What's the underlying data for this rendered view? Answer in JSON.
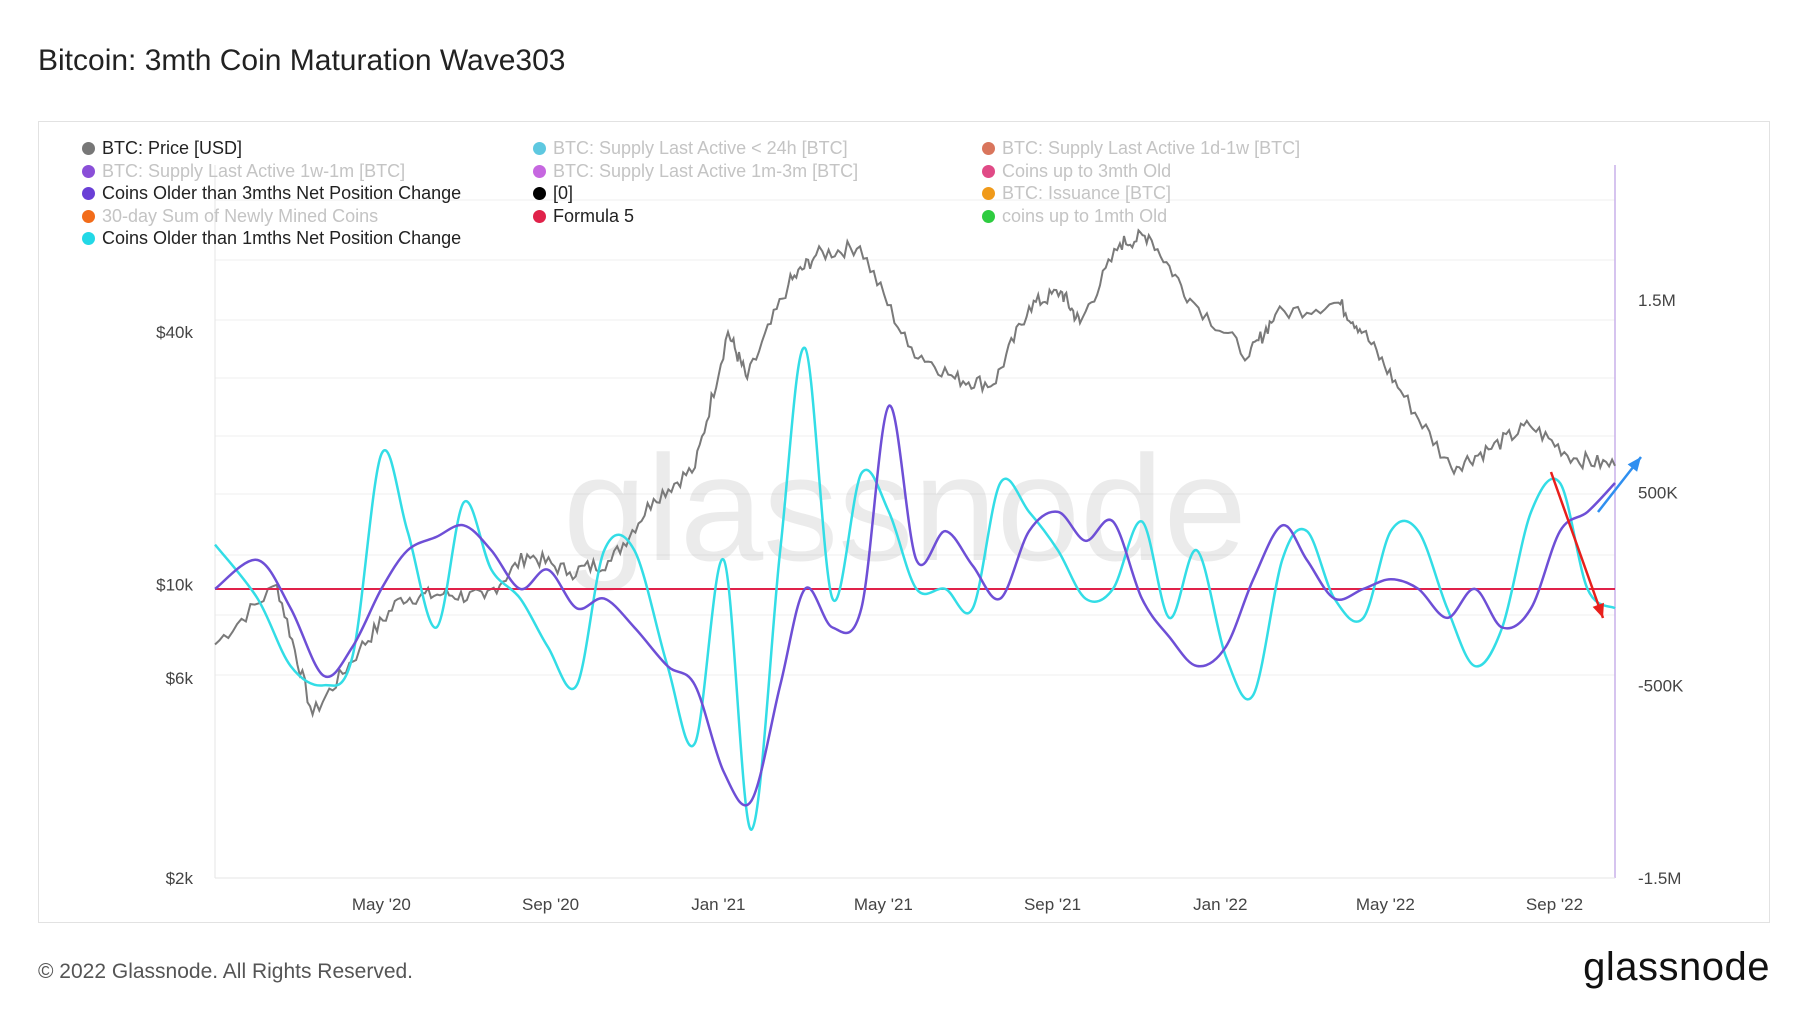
{
  "title": "Bitcoin: 3mth Coin Maturation Wave303",
  "footer": {
    "copyright": "© 2022 Glassnode. All Rights Reserved.",
    "logo": "glassnode"
  },
  "watermark": "glassnode",
  "colors": {
    "price": "#7a7a7a",
    "coins_3m": "#6e4fd6",
    "coins_1m": "#33dde6",
    "formula5": "#e0224a",
    "arrow_red": "#e8201c",
    "arrow_blue": "#2f8ff0"
  },
  "legend": [
    {
      "label": "BTC: Price [USD]",
      "color": "#777777",
      "active": true
    },
    {
      "label": "BTC: Supply Last Active < 24h [BTC]",
      "color": "#5ec8e0",
      "active": false
    },
    {
      "label": "BTC: Supply Last Active 1d-1w [BTC]",
      "color": "#d9755c",
      "active": false
    },
    {
      "label": "BTC: Supply Last Active 1w-1m [BTC]",
      "color": "#8a4fd8",
      "active": false
    },
    {
      "label": "BTC: Supply Last Active 1m-3m [BTC]",
      "color": "#c667e0",
      "active": false
    },
    {
      "label": "Coins up to 3mth Old",
      "color": "#e04a86",
      "active": false
    },
    {
      "label": "Coins Older than 3mths Net Position Change",
      "color": "#6a3fd6",
      "active": true
    },
    {
      "label": "[0]",
      "color": "#000000",
      "active": true
    },
    {
      "label": "BTC: Issuance [BTC]",
      "color": "#f09a1a",
      "active": false
    },
    {
      "label": "30-day Sum of Newly Mined Coins",
      "color": "#f26c1a",
      "active": false
    },
    {
      "label": "Formula 5",
      "color": "#e0224a",
      "active": true
    },
    {
      "label": "coins up to 1mth Old",
      "color": "#2ecc40",
      "active": false
    },
    {
      "label": "Coins Older than 1mths Net Position Change",
      "color": "#22d8e6",
      "active": true
    }
  ],
  "chart_data": {
    "type": "line",
    "title": "Bitcoin: 3mth Coin Maturation Wave303",
    "x_range": [
      "2020-01-01",
      "2022-10-15"
    ],
    "x_tick_labels": [
      "May '20",
      "Sep '20",
      "Jan '21",
      "May '21",
      "Sep '21",
      "Jan '22",
      "May '22",
      "Sep '22"
    ],
    "y_left": {
      "scale": "log",
      "range": [
        2000,
        100000
      ],
      "tick_labels": [
        "$2k",
        "$6k",
        "$10k",
        "$40k"
      ],
      "tick_values": [
        2000,
        6000,
        10000,
        40000
      ]
    },
    "y_right": {
      "scale": "linear",
      "range": [
        -1500000,
        2200000
      ],
      "tick_labels": [
        "-1.5M",
        "-500K",
        "500K",
        "1.5M"
      ],
      "tick_values": [
        -1500000,
        -500000,
        500000,
        1500000
      ]
    },
    "series": [
      {
        "name": "BTC: Price [USD]",
        "axis": "left",
        "x": [
          "2020-01-01",
          "2020-02-15",
          "2020-03-12",
          "2020-04-15",
          "2020-05-15",
          "2020-06-15",
          "2020-07-15",
          "2020-08-15",
          "2020-09-15",
          "2020-10-15",
          "2020-11-15",
          "2020-12-15",
          "2021-01-08",
          "2021-01-22",
          "2021-02-21",
          "2021-03-13",
          "2021-04-14",
          "2021-05-19",
          "2021-06-22",
          "2021-07-20",
          "2021-08-15",
          "2021-09-07",
          "2021-09-21",
          "2021-10-20",
          "2021-11-10",
          "2021-12-10",
          "2022-01-22",
          "2022-02-10",
          "2022-03-28",
          "2022-04-15",
          "2022-05-12",
          "2022-06-18",
          "2022-07-15",
          "2022-08-14",
          "2022-09-15",
          "2022-10-15"
        ],
        "values": [
          7200,
          10000,
          4900,
          7000,
          9300,
          9500,
          9300,
          11800,
          10700,
          11400,
          16000,
          19000,
          40000,
          31000,
          52000,
          61000,
          64000,
          37000,
          31000,
          30000,
          46000,
          50000,
          42000,
          65000,
          68000,
          48000,
          35000,
          44000,
          47000,
          40000,
          29000,
          19000,
          21000,
          24000,
          20000,
          19200
        ]
      },
      {
        "name": "Coins Older than 3mths Net Position Change",
        "axis": "right",
        "x": [
          "2020-01-01",
          "2020-02-01",
          "2020-02-25",
          "2020-03-20",
          "2020-04-10",
          "2020-05-01",
          "2020-05-20",
          "2020-06-10",
          "2020-06-30",
          "2020-07-20",
          "2020-08-10",
          "2020-08-30",
          "2020-09-20",
          "2020-10-10",
          "2020-11-01",
          "2020-11-25",
          "2020-12-15",
          "2021-01-05",
          "2021-01-25",
          "2021-02-15",
          "2021-03-05",
          "2021-03-25",
          "2021-04-15",
          "2021-05-05",
          "2021-05-25",
          "2021-06-15",
          "2021-07-05",
          "2021-07-25",
          "2021-08-15",
          "2021-09-05",
          "2021-09-25",
          "2021-10-15",
          "2021-11-05",
          "2021-11-25",
          "2021-12-15",
          "2022-01-05",
          "2022-01-25",
          "2022-02-15",
          "2022-03-05",
          "2022-03-25",
          "2022-04-15",
          "2022-05-05",
          "2022-05-25",
          "2022-06-15",
          "2022-07-05",
          "2022-07-25",
          "2022-08-15",
          "2022-09-05",
          "2022-09-25",
          "2022-10-15"
        ],
        "values": [
          0,
          150000,
          -100000,
          -450000,
          -300000,
          0,
          200000,
          270000,
          330000,
          200000,
          0,
          100000,
          -100000,
          -50000,
          -200000,
          -400000,
          -500000,
          -950000,
          -1100000,
          -500000,
          0,
          -200000,
          -100000,
          950000,
          150000,
          300000,
          120000,
          -50000,
          300000,
          400000,
          250000,
          350000,
          -50000,
          -250000,
          -400000,
          -300000,
          50000,
          330000,
          150000,
          -50000,
          0,
          50000,
          0,
          -150000,
          0,
          -200000,
          -100000,
          300000,
          400000,
          550000
        ]
      },
      {
        "name": "Coins Older than 1mths Net Position Change",
        "axis": "right",
        "x": [
          "2020-01-01",
          "2020-02-01",
          "2020-02-25",
          "2020-03-20",
          "2020-04-10",
          "2020-05-01",
          "2020-05-20",
          "2020-06-10",
          "2020-06-30",
          "2020-07-20",
          "2020-08-10",
          "2020-08-30",
          "2020-09-20",
          "2020-10-10",
          "2020-11-01",
          "2020-11-25",
          "2020-12-15",
          "2021-01-05",
          "2021-01-25",
          "2021-02-15",
          "2021-03-05",
          "2021-03-25",
          "2021-04-15",
          "2021-05-05",
          "2021-05-25",
          "2021-06-15",
          "2021-07-05",
          "2021-07-25",
          "2021-08-15",
          "2021-09-05",
          "2021-09-25",
          "2021-10-15",
          "2021-11-05",
          "2021-11-25",
          "2021-12-15",
          "2022-01-05",
          "2022-01-25",
          "2022-02-15",
          "2022-03-05",
          "2022-03-25",
          "2022-04-15",
          "2022-05-05",
          "2022-05-25",
          "2022-06-15",
          "2022-07-05",
          "2022-07-25",
          "2022-08-15",
          "2022-09-05",
          "2022-09-25",
          "2022-10-15"
        ],
        "values": [
          230000,
          -50000,
          -400000,
          -500000,
          -350000,
          700000,
          300000,
          -200000,
          450000,
          100000,
          -50000,
          -300000,
          -500000,
          200000,
          200000,
          -400000,
          -800000,
          150000,
          -1250000,
          200000,
          1250000,
          -50000,
          600000,
          400000,
          0,
          0,
          -100000,
          550000,
          400000,
          200000,
          -50000,
          0,
          350000,
          -150000,
          200000,
          -350000,
          -550000,
          150000,
          300000,
          -50000,
          -150000,
          300000,
          300000,
          -100000,
          -400000,
          -200000,
          400000,
          550000,
          0,
          -100000
        ]
      },
      {
        "name": "Formula 5",
        "axis": "right",
        "x": [
          "2020-01-01",
          "2022-10-15"
        ],
        "values": [
          0,
          0
        ]
      }
    ],
    "annotations": [
      {
        "type": "arrow",
        "color": "red",
        "direction": "down",
        "near": "2022-09"
      },
      {
        "type": "arrow",
        "color": "blue",
        "direction": "up",
        "near": "2022-10"
      }
    ]
  }
}
